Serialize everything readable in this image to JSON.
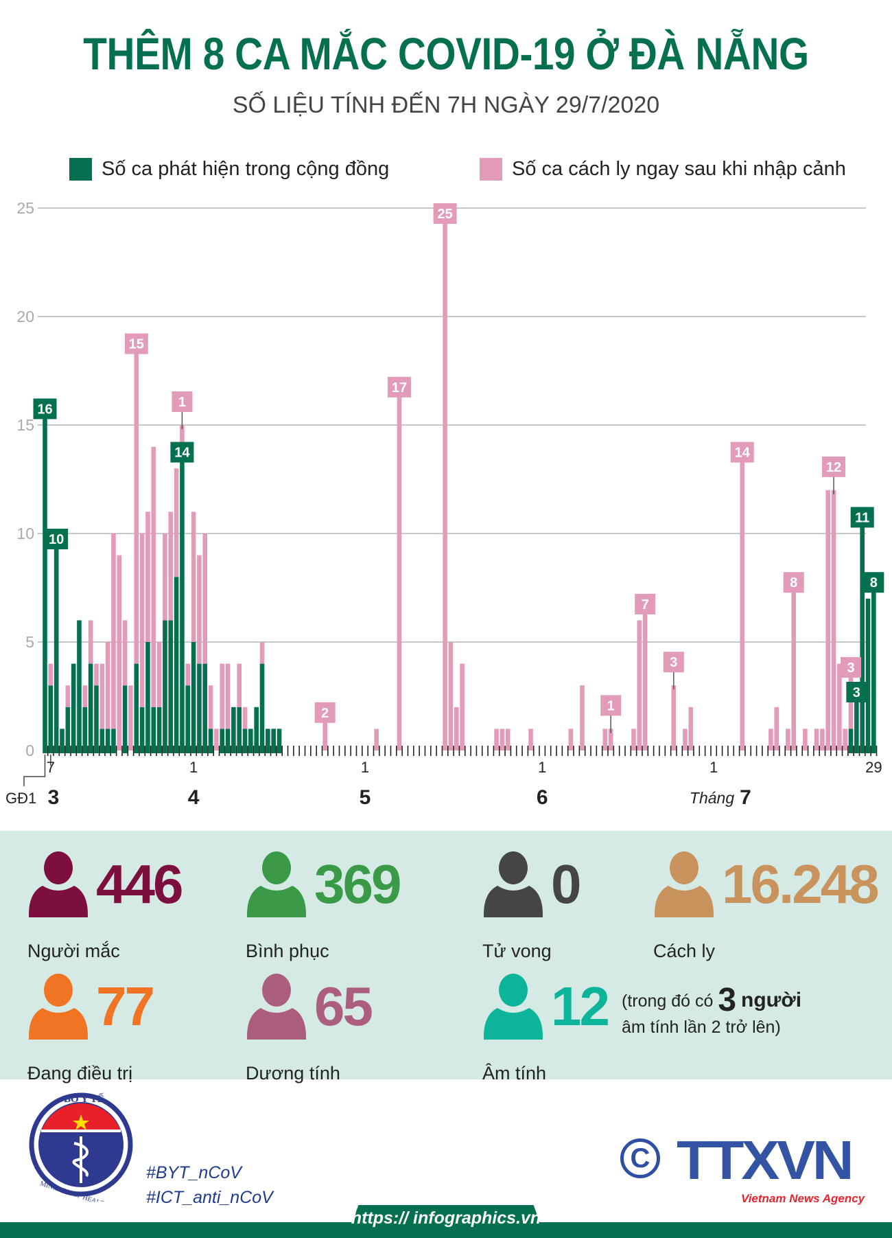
{
  "header": {
    "title": "THÊM 8 CA MẮC COVID-19 Ở ĐÀ NẴNG",
    "subtitle": "SỐ LIỆU TÍNH ĐẾN 7H NGÀY 29/7/2020"
  },
  "colors": {
    "community": "#05704f",
    "quarantine": "#e39bba",
    "panel": "#d6eae5"
  },
  "chart_data": {
    "type": "bar",
    "stacked": true,
    "x_start": "2020-03-06",
    "x_end": "2020-07-29",
    "ylim": [
      0,
      25
    ],
    "yticks": [
      "0",
      "5",
      "10",
      "15",
      "20",
      "25"
    ],
    "grid": true,
    "legend_position": "top",
    "series": [
      {
        "name": "Số ca phát hiện trong cộng đồng",
        "color": "#05704f",
        "values": [
          16,
          3,
          10,
          1,
          2,
          4,
          6,
          2,
          4,
          3,
          1,
          1,
          1,
          0,
          3,
          0,
          4,
          2,
          5,
          2,
          2,
          6,
          6,
          8,
          14,
          3,
          5,
          4,
          4,
          1,
          0,
          1,
          1,
          2,
          2,
          1,
          1,
          2,
          4,
          1,
          1,
          1,
          0,
          0,
          0,
          0,
          0,
          0,
          0,
          0,
          0,
          0,
          0,
          0,
          0,
          0,
          0,
          0,
          0,
          0,
          0,
          0,
          0,
          0,
          0,
          0,
          0,
          0,
          0,
          0,
          0,
          0,
          0,
          0,
          0,
          0,
          0,
          0,
          0,
          0,
          0,
          0,
          0,
          0,
          0,
          0,
          0,
          0,
          0,
          0,
          0,
          0,
          0,
          0,
          0,
          0,
          0,
          0,
          0,
          0,
          0,
          0,
          0,
          0,
          0,
          0,
          0,
          0,
          0,
          0,
          0,
          0,
          0,
          0,
          0,
          0,
          0,
          0,
          0,
          0,
          0,
          0,
          0,
          0,
          0,
          0,
          0,
          0,
          0,
          0,
          0,
          0,
          0,
          0,
          0,
          0,
          0,
          0,
          0,
          0,
          0,
          1,
          3,
          11,
          7,
          8
        ]
      },
      {
        "name": "Số ca cách ly ngay sau khi nhập cảnh",
        "color": "#e39bba",
        "values": [
          0,
          1,
          0,
          0,
          1,
          0,
          0,
          1,
          2,
          1,
          3,
          4,
          9,
          9,
          3,
          3,
          15,
          8,
          6,
          12,
          3,
          4,
          5,
          5,
          1,
          1,
          6,
          5,
          6,
          2,
          1,
          3,
          3,
          0,
          2,
          1,
          0,
          0,
          1,
          0,
          0,
          0,
          0,
          0,
          0,
          0,
          0,
          0,
          0,
          2,
          0,
          0,
          0,
          0,
          0,
          0,
          0,
          0,
          1,
          0,
          0,
          0,
          17,
          0,
          0,
          0,
          0,
          0,
          0,
          0,
          25,
          5,
          2,
          4,
          0,
          0,
          0,
          0,
          0,
          1,
          1,
          1,
          0,
          0,
          0,
          1,
          0,
          0,
          0,
          0,
          0,
          0,
          1,
          0,
          3,
          0,
          0,
          0,
          1,
          1,
          0,
          0,
          0,
          1,
          6,
          7,
          0,
          0,
          0,
          0,
          3,
          0,
          1,
          2,
          0,
          0,
          0,
          0,
          0,
          0,
          0,
          0,
          14,
          0,
          0,
          0,
          0,
          1,
          2,
          0,
          1,
          8,
          0,
          1,
          0,
          1,
          1,
          12,
          12,
          4,
          1,
          3,
          0,
          0,
          0,
          0
        ]
      }
    ],
    "annotations": [
      {
        "day": 0,
        "text": "16",
        "series": 0
      },
      {
        "day": 2,
        "text": "10",
        "series": 0
      },
      {
        "day": 16,
        "text": "15",
        "series": 1
      },
      {
        "day": 24,
        "text": "1",
        "series": 1,
        "leader": true
      },
      {
        "day": 24,
        "text": "14",
        "series": 0
      },
      {
        "day": 49,
        "text": "2",
        "series": 1
      },
      {
        "day": 62,
        "text": "17",
        "series": 1
      },
      {
        "day": 70,
        "text": "25",
        "series": 1
      },
      {
        "day": 99,
        "text": "1",
        "series": 1,
        "leader": true
      },
      {
        "day": 105,
        "text": "7",
        "series": 1
      },
      {
        "day": 110,
        "text": "3",
        "series": 1,
        "leader": true
      },
      {
        "day": 122,
        "text": "14",
        "series": 1
      },
      {
        "day": 131,
        "text": "8",
        "series": 1
      },
      {
        "day": 138,
        "text": "12",
        "series": 1,
        "leader": true
      },
      {
        "day": 141,
        "text": "3",
        "series": 1
      },
      {
        "day": 142,
        "text": "3",
        "series": 0
      },
      {
        "day": 143,
        "text": "11",
        "series": 0
      },
      {
        "day": 145,
        "text": "8",
        "series": 0
      }
    ],
    "day_labels": [
      {
        "day": 1,
        "text": "7"
      },
      {
        "day": 26,
        "text": "1"
      },
      {
        "day": 56,
        "text": "1"
      },
      {
        "day": 87,
        "text": "1"
      },
      {
        "day": 117,
        "text": "1"
      },
      {
        "day": 145,
        "text": "29"
      }
    ],
    "month_labels": [
      {
        "day": 1,
        "text": "3"
      },
      {
        "day": 26,
        "text": "4"
      },
      {
        "day": 56,
        "text": "5"
      },
      {
        "day": 87,
        "text": "6"
      },
      {
        "day": 117,
        "prefix": "Tháng",
        "text": "7"
      }
    ],
    "phase_label": "GĐ1"
  },
  "stats": [
    {
      "value": "446",
      "label": "Người mắc",
      "color": "#7d0f3f"
    },
    {
      "value": "369",
      "label": "Bình phục",
      "color": "#3a9a48"
    },
    {
      "value": "0",
      "label": "Tử vong",
      "color": "#454545"
    },
    {
      "value": "16.248",
      "label": "Cách ly",
      "color": "#c8935c"
    },
    {
      "value": "77",
      "label": "Đang điều trị",
      "color": "#f07424"
    },
    {
      "value": "65",
      "label": "Dương tính",
      "color": "#ac5e7e"
    },
    {
      "value": "12",
      "label": "Âm tính",
      "color": "#0cb59a"
    }
  ],
  "note": {
    "part1": "(trong đó có",
    "count": "3",
    "part2": "người",
    "line2": "âm tính lần 2 trở lên)"
  },
  "footer": {
    "ministry_logo_text": [
      "BỘ Y TẾ",
      "MINISTRY OF HEALTH"
    ],
    "hashtags": [
      "#BYT_nCoV",
      "#ICT_anti_nCoV"
    ],
    "copyright_symbol": "©",
    "agency_logo": "TTXVN",
    "agency_name": "Vietnam News Agency",
    "url": "https:// infographics.vn"
  }
}
